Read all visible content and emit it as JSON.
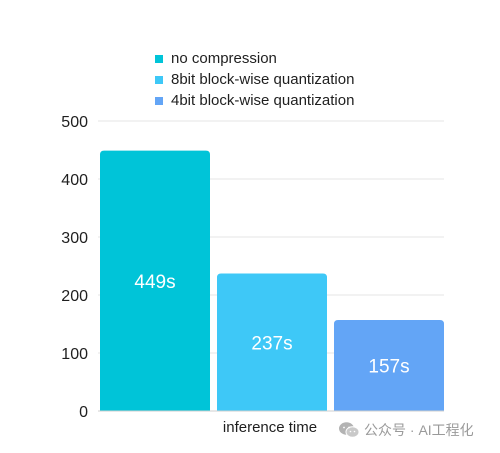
{
  "chart_data": {
    "type": "bar",
    "categories": [
      "inference time"
    ],
    "xlabel": "inference time",
    "ylabel": "",
    "ylim": [
      0,
      500
    ],
    "yticks": [
      0,
      100,
      200,
      300,
      400,
      500
    ],
    "grid": true,
    "legend_position": "top",
    "series": [
      {
        "name": "no compression",
        "values": [
          449
        ],
        "label": "449s",
        "color": "#00c4d8"
      },
      {
        "name": "8bit block-wise quantization",
        "values": [
          237
        ],
        "label": "237s",
        "color": "#3ec8f7"
      },
      {
        "name": "4bit block-wise quantization",
        "values": [
          157
        ],
        "label": "157s",
        "color": "#63a5f6"
      }
    ]
  },
  "watermark": {
    "text": "公众号 · AI工程化",
    "icon": "wechat-icon"
  }
}
